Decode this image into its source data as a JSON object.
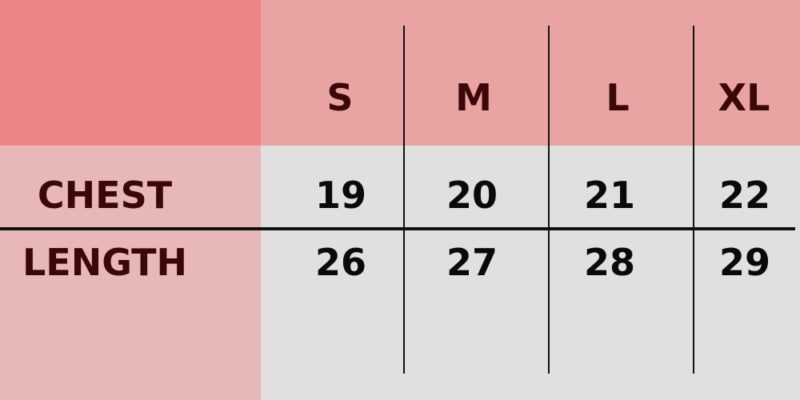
{
  "table": {
    "sizes": [
      "S",
      "M",
      "L",
      "XL"
    ],
    "rows": [
      {
        "label": "CHEST",
        "values": [
          "19",
          "20",
          "21",
          "22"
        ]
      },
      {
        "label": "LENGTH",
        "values": [
          "26",
          "27",
          "28",
          "29"
        ]
      }
    ]
  },
  "colors": {
    "corner": "#ee8585",
    "header_row": "#e9a3a3",
    "label_column": "#e8b8b8",
    "body": "#e0e0e0",
    "header_text": "#3a0808",
    "value_text": "#0a0a0a"
  }
}
